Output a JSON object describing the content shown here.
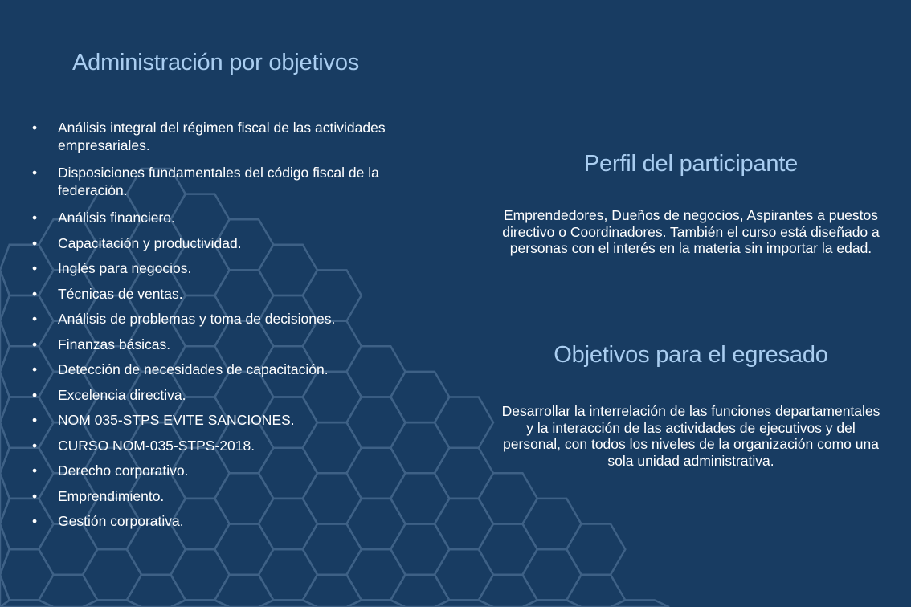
{
  "colors": {
    "background": "#183c62",
    "title": "#a9cdf0",
    "text": "#ffffff",
    "hexagon_stroke": "#3e6186"
  },
  "left": {
    "title": "Administración por objetivos",
    "items": [
      " Análisis integral del régimen fiscal de las actividades empresariales.",
      "Disposiciones fundamentales del código fiscal de la federación.",
      "Análisis financiero.",
      "Capacitación y productividad.",
      "Inglés para negocios.",
      "Técnicas de ventas.",
      "Análisis de problemas y toma de decisiones.",
      "Finanzas básicas.",
      "Detección de necesidades de capacitación.",
      "Excelencia directiva.",
      "NOM 035-STPS EVITE SANCIONES.",
      "CURSO NOM-035-STPS-2018.",
      "Derecho corporativo.",
      "Emprendimiento.",
      "Gestión corporativa."
    ]
  },
  "perfil": {
    "title": "Perfil del participante",
    "text": "Emprendedores, Dueños de negocios, Aspirantes a puestos directivo o  Coordinadores. También el curso está diseñado a personas con el interés en la materia sin importar la edad."
  },
  "objetivos": {
    "title": "Objetivos para el egresado",
    "text": "Desarrollar la interrelación de las funciones departamentales y la interacción de las actividades de ejecutivos y del personal, con todos los niveles de la organización como una sola unidad administrativa."
  }
}
